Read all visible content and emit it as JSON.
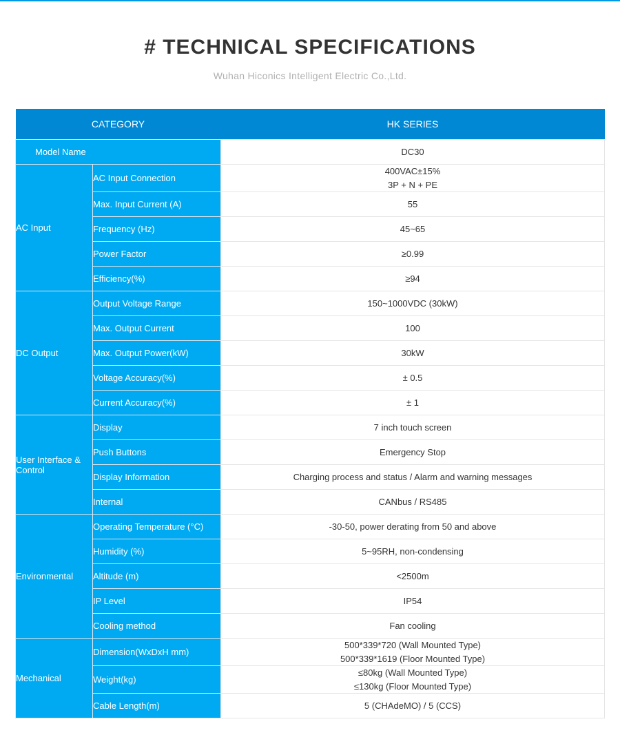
{
  "header": {
    "title": "# TECHNICAL SPECIFICATIONS",
    "subtitle": "Wuhan Hiconics Intelligent Electric Co.,Ltd."
  },
  "table": {
    "col_category": "CATEGORY",
    "col_series": "HK SERIES",
    "colors": {
      "header_bg": "#0088d4",
      "category_bg": "#00aaf2",
      "category_border": "#2fb9f5",
      "value_bg": "#ffffff",
      "value_border": "#e5e5e5",
      "text_white": "#ffffff",
      "text_dark": "#333333"
    },
    "column_widths": {
      "category": 112,
      "param": 186,
      "value": 558
    },
    "font_size": 13,
    "groups": [
      {
        "name": "",
        "rows": [
          {
            "param": "Model Name",
            "value": "DC30"
          }
        ]
      },
      {
        "name": "AC Input",
        "rows": [
          {
            "param": "AC Input Connection",
            "value": "400VAC±15%\n3P + N + PE"
          },
          {
            "param": "Max. Input Current (A)",
            "value": "55"
          },
          {
            "param": "Frequency (Hz)",
            "value": "45~65"
          },
          {
            "param": "Power Factor",
            "value": "≥0.99"
          },
          {
            "param": "Efficiency(%)",
            "value": "≥94"
          }
        ]
      },
      {
        "name": "DC Output",
        "rows": [
          {
            "param": "Output Voltage Range",
            "value": "150~1000VDC (30kW)"
          },
          {
            "param": "Max. Output Current",
            "value": "100"
          },
          {
            "param": "Max. Output Power(kW)",
            "value": "30kW"
          },
          {
            "param": "Voltage Accuracy(%)",
            "value": "± 0.5"
          },
          {
            "param": "Current Accuracy(%)",
            "value": "± 1"
          }
        ]
      },
      {
        "name": "User Interface & Control",
        "rows": [
          {
            "param": "Display",
            "value": "7 inch touch screen"
          },
          {
            "param": "Push Buttons",
            "value": "Emergency Stop"
          },
          {
            "param": "Display Information",
            "value": "Charging process and status / Alarm and warning messages"
          },
          {
            "param": "Internal",
            "value": "CANbus / RS485"
          }
        ]
      },
      {
        "name": "Environmental",
        "rows": [
          {
            "param": "Operating Temperature (°C)",
            "value": "-30-50, power derating from 50 and above"
          },
          {
            "param": "Humidity (%)",
            "value": "5~95RH, non-condensing"
          },
          {
            "param": "Altitude (m)",
            "value": "<2500m"
          },
          {
            "param": "IP Level",
            "value": "IP54"
          },
          {
            "param": "Cooling method",
            "value": "Fan cooling"
          }
        ]
      },
      {
        "name": "Mechanical",
        "rows": [
          {
            "param": "Dimension(WxDxH mm)",
            "value": "500*339*720 (Wall Mounted Type)\n500*339*1619 (Floor Mounted Type)"
          },
          {
            "param": "Weight(kg)",
            "value": "≤80kg (Wall Mounted Type)\n≤130kg (Floor Mounted Type)"
          },
          {
            "param": "Cable Length(m)",
            "value": "5 (CHAdeMO) / 5 (CCS)"
          }
        ]
      }
    ]
  }
}
